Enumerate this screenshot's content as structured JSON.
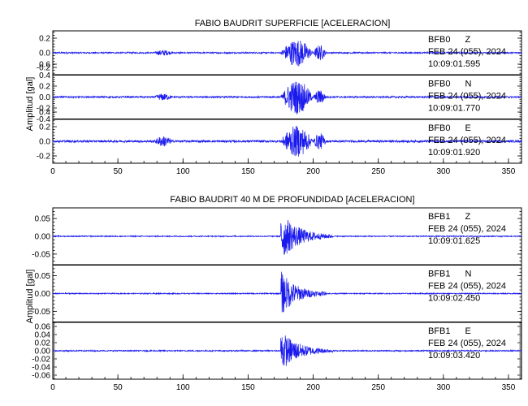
{
  "chart_data": [
    {
      "type": "line",
      "title": "FABIO BAUDRIT SUPERFICIE [ACELERACION]",
      "ylabel": "Amplitud [gal]",
      "xlim": [
        0,
        360
      ],
      "x_ticks": [
        "0",
        "50",
        "100",
        "150",
        "200",
        "250",
        "300",
        "350"
      ],
      "color": "#1a1aee",
      "panels": [
        {
          "station": "BFB0",
          "component": "Z",
          "date": "FEB 24 (055), 2024",
          "time": "10:09:01.595",
          "ylim": [
            -0.3,
            0.3
          ],
          "y_ticks": [
            "0.2",
            "0.0",
            "-0.2"
          ],
          "y_tick_values": [
            0.2,
            0.0,
            -0.2
          ],
          "noise": 0.01,
          "bursts": [
            {
              "start": 78,
              "end": 92,
              "amp": 0.03
            },
            {
              "start": 175,
              "end": 200,
              "amp": 0.18
            },
            {
              "start": 200,
              "end": 210,
              "amp": 0.1
            }
          ]
        },
        {
          "station": "BFB0",
          "component": "N",
          "date": "FEB 24 (055), 2024",
          "time": "10:09:01.770",
          "ylim": [
            -0.4,
            0.4
          ],
          "y_ticks": [
            "0.6",
            "0.4",
            "0.2",
            "0.0",
            "-0.2",
            "-0.4"
          ],
          "y_tick_values": [
            0.6,
            0.4,
            0.2,
            0.0,
            -0.2,
            -0.4
          ],
          "noise": 0.015,
          "bursts": [
            {
              "start": 78,
              "end": 92,
              "amp": 0.05
            },
            {
              "start": 175,
              "end": 200,
              "amp": 0.3
            },
            {
              "start": 200,
              "end": 210,
              "amp": 0.12
            }
          ]
        },
        {
          "station": "BFB0",
          "component": "E",
          "date": "FEB 24 (055), 2024",
          "time": "10:09:01.920",
          "ylim": [
            -0.3,
            0.3
          ],
          "y_ticks": [
            "0.4",
            "0.2",
            "0.0",
            "-0.2"
          ],
          "y_tick_values": [
            0.4,
            0.2,
            0.0,
            -0.2
          ],
          "noise": 0.015,
          "bursts": [
            {
              "start": 78,
              "end": 92,
              "amp": 0.06
            },
            {
              "start": 175,
              "end": 200,
              "amp": 0.2
            },
            {
              "start": 200,
              "end": 210,
              "amp": 0.1
            }
          ]
        }
      ]
    },
    {
      "type": "line",
      "title": "FABIO BAUDRIT 40 M DE PROFUNDIDAD [ACELERACION]",
      "ylabel": "Amplitud [gal]",
      "xlim": [
        0,
        360
      ],
      "x_ticks": [
        "0",
        "50",
        "100",
        "150",
        "200",
        "250",
        "300",
        "350"
      ],
      "color": "#1a1aee",
      "panels": [
        {
          "station": "BFB1",
          "component": "Z",
          "date": "FEB 24 (055), 2024",
          "time": "10:09:01.625",
          "ylim": [
            -0.08,
            0.08
          ],
          "y_ticks": [
            "0.05",
            "0.00",
            "-0.05"
          ],
          "y_tick_values": [
            0.05,
            0.0,
            -0.05
          ],
          "noise": 0.0015,
          "bursts": [
            {
              "start": 175,
              "end": 215,
              "amp": 0.07,
              "decay": true
            }
          ]
        },
        {
          "station": "BFB1",
          "component": "N",
          "date": "FEB 24 (055), 2024",
          "time": "10:09:02.450",
          "ylim": [
            -0.08,
            0.08
          ],
          "y_ticks": [
            "0.05",
            "0.00",
            "-0.05"
          ],
          "y_tick_values": [
            0.05,
            0.0,
            -0.05
          ],
          "noise": 0.0015,
          "bursts": [
            {
              "start": 175,
              "end": 210,
              "amp": 0.065,
              "decay": true
            }
          ]
        },
        {
          "station": "BFB1",
          "component": "E",
          "date": "FEB 24 (055), 2024",
          "time": "10:09:03.420",
          "ylim": [
            -0.07,
            0.07
          ],
          "y_ticks": [
            "0.06",
            "0.04",
            "0.02",
            "0.00",
            "-0.02",
            "-0.04",
            "-0.06"
          ],
          "y_tick_values": [
            0.06,
            0.04,
            0.02,
            0.0,
            -0.02,
            -0.04,
            -0.06
          ],
          "noise": 0.0015,
          "bursts": [
            {
              "start": 175,
              "end": 215,
              "amp": 0.05,
              "decay": true
            }
          ]
        }
      ]
    }
  ]
}
